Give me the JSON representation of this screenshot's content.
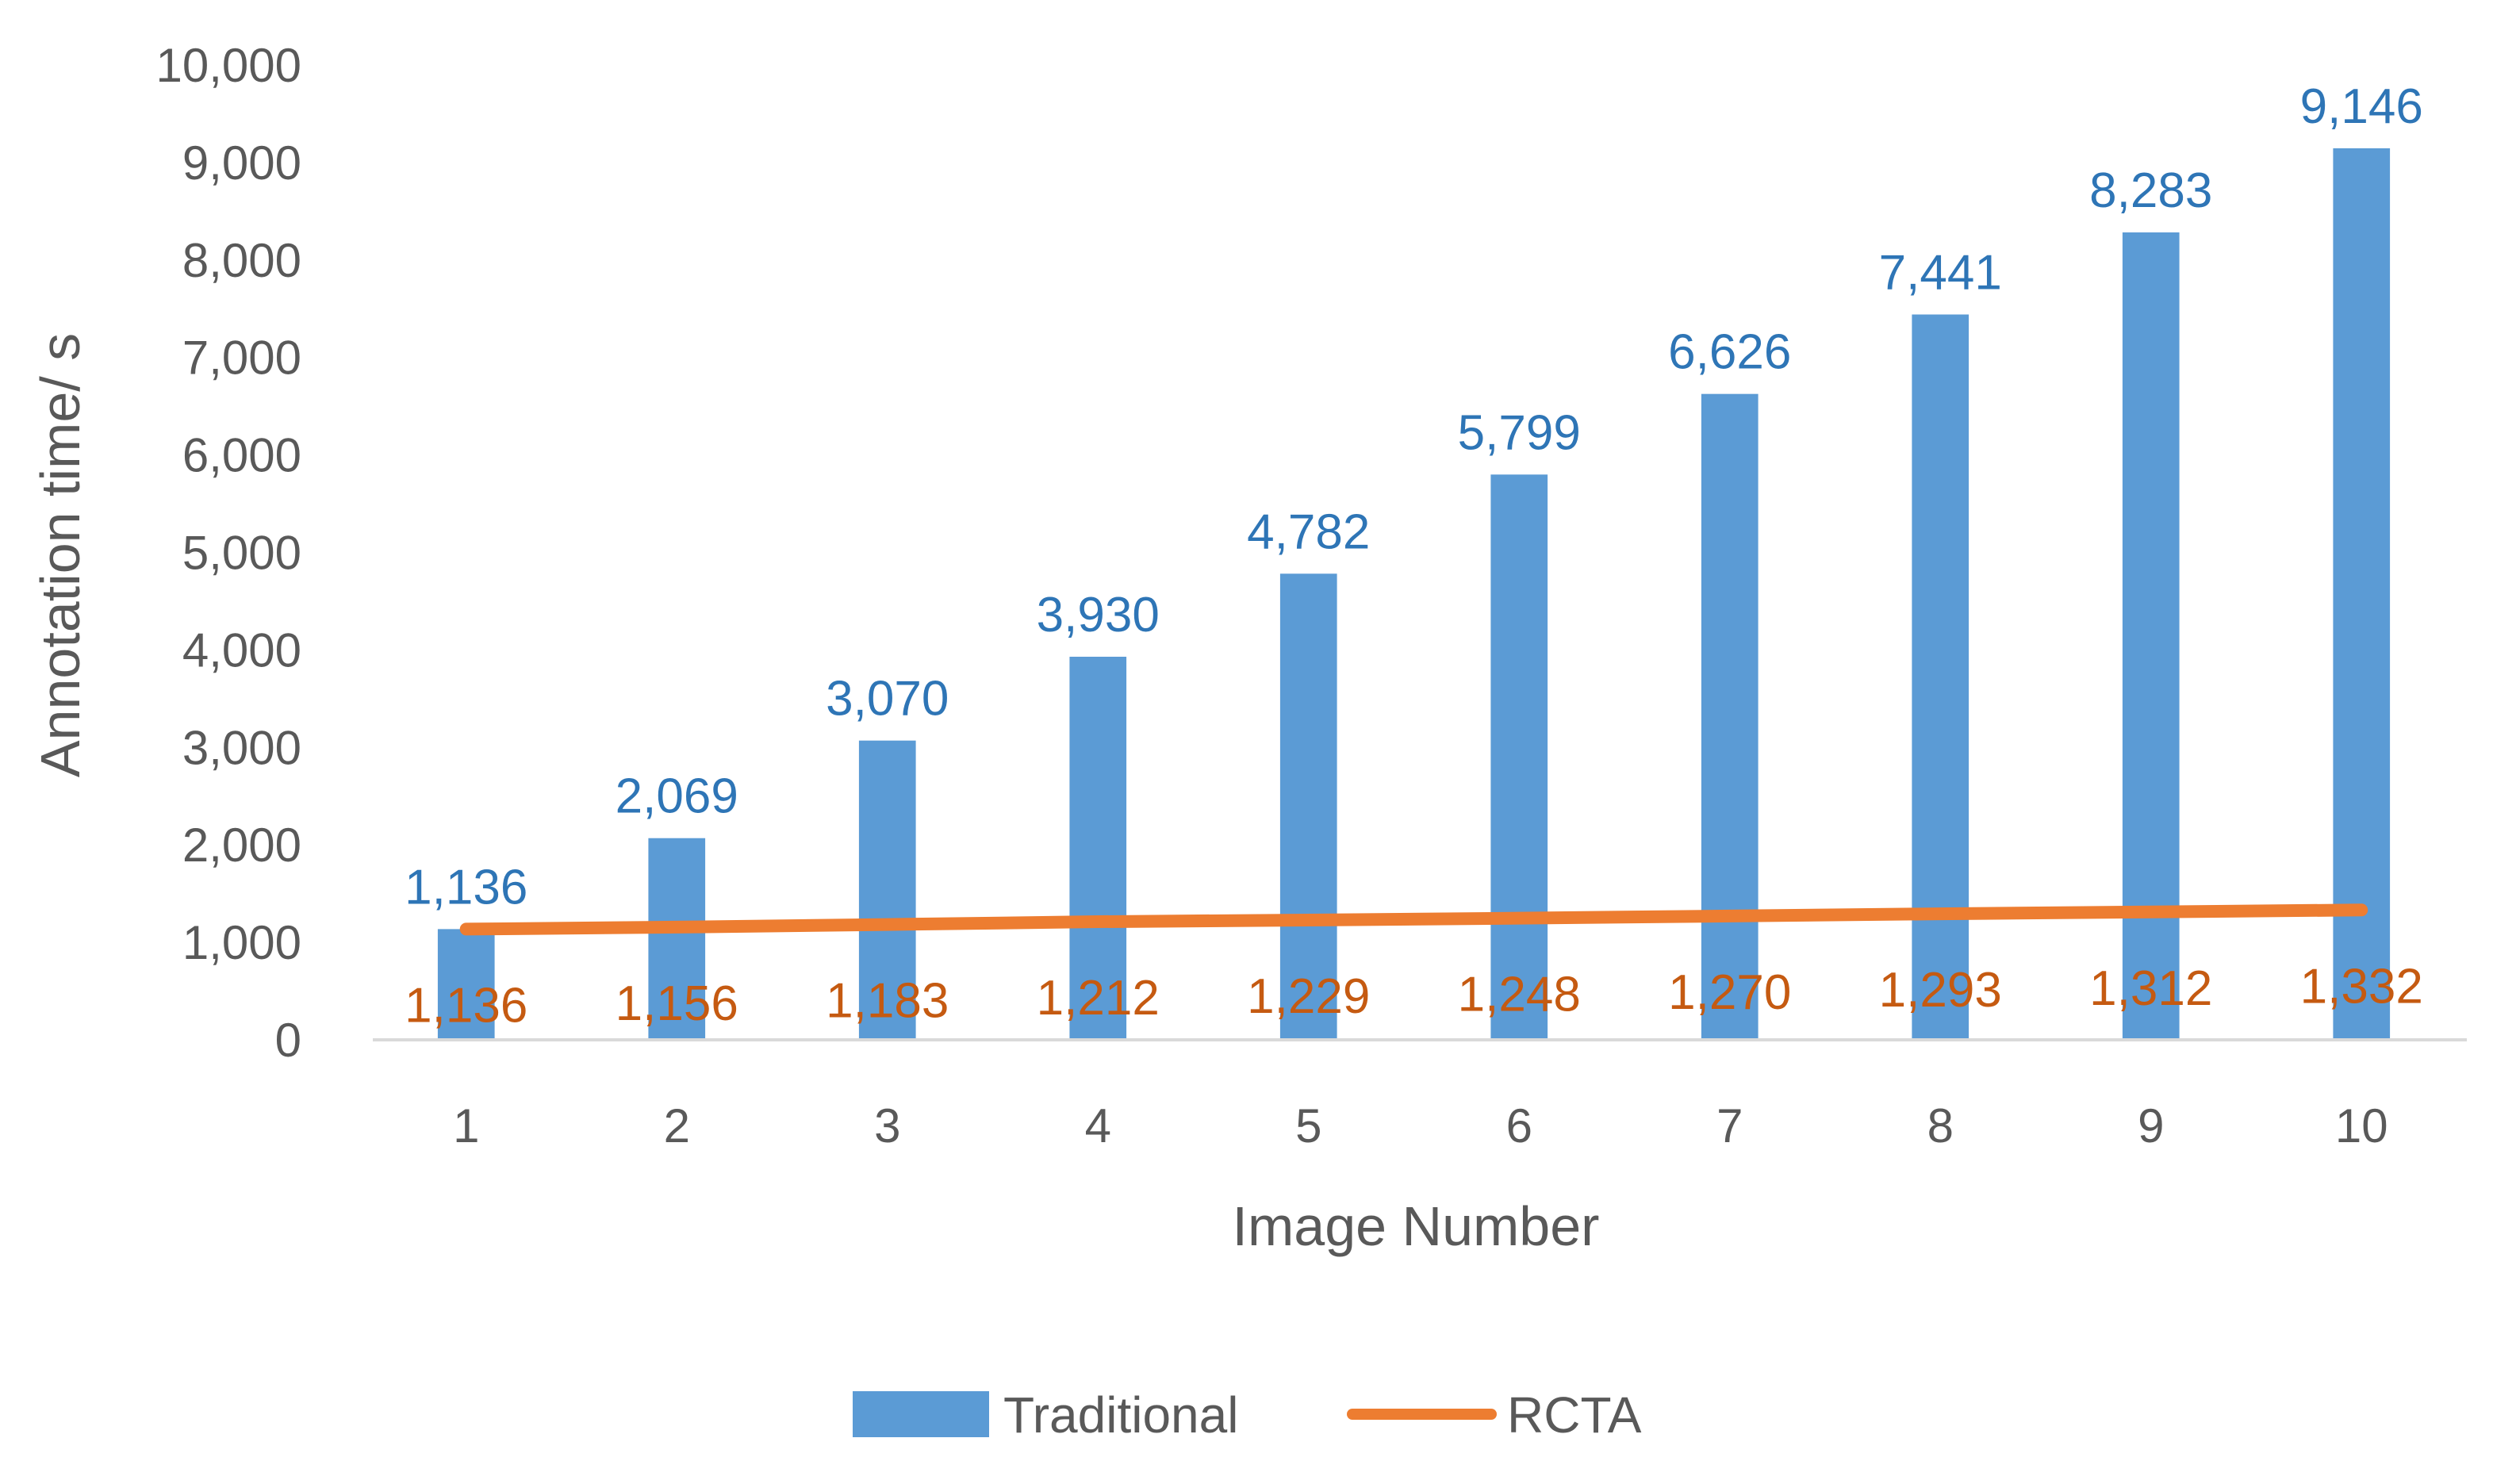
{
  "chart_data": {
    "type": "bar",
    "categories": [
      "1",
      "2",
      "3",
      "4",
      "5",
      "6",
      "7",
      "8",
      "9",
      "10"
    ],
    "series": [
      {
        "name": "Traditional",
        "render": "bar",
        "color": "#5b9bd5",
        "label_color": "#2e75b6",
        "values": [
          1136,
          2069,
          3070,
          3930,
          4782,
          5799,
          6626,
          7441,
          8283,
          9146
        ],
        "labels": [
          "1,136",
          "2,069",
          "3,070",
          "3,930",
          "4,782",
          "5,799",
          "6,626",
          "7,441",
          "8,283",
          "9,146"
        ]
      },
      {
        "name": "RCTA",
        "render": "line",
        "color": "#ed7d31",
        "label_color": "#c55a11",
        "values": [
          1136,
          1156,
          1183,
          1212,
          1229,
          1248,
          1270,
          1293,
          1312,
          1332
        ],
        "labels": [
          "1,136",
          "1,156",
          "1,183",
          "1,212",
          "1,229",
          "1,248",
          "1,270",
          "1,293",
          "1,312",
          "1,332"
        ]
      }
    ],
    "xlabel": "Image Number",
    "ylabel": "Annotation time/ s",
    "ylim": [
      0,
      10000
    ],
    "yticks": [
      0,
      1000,
      2000,
      3000,
      4000,
      5000,
      6000,
      7000,
      8000,
      9000,
      10000
    ],
    "ytick_labels": [
      "0",
      "1,000",
      "2,000",
      "3,000",
      "4,000",
      "5,000",
      "6,000",
      "7,000",
      "8,000",
      "9,000",
      "10,000"
    ],
    "grid": false,
    "legend_position": "bottom"
  }
}
